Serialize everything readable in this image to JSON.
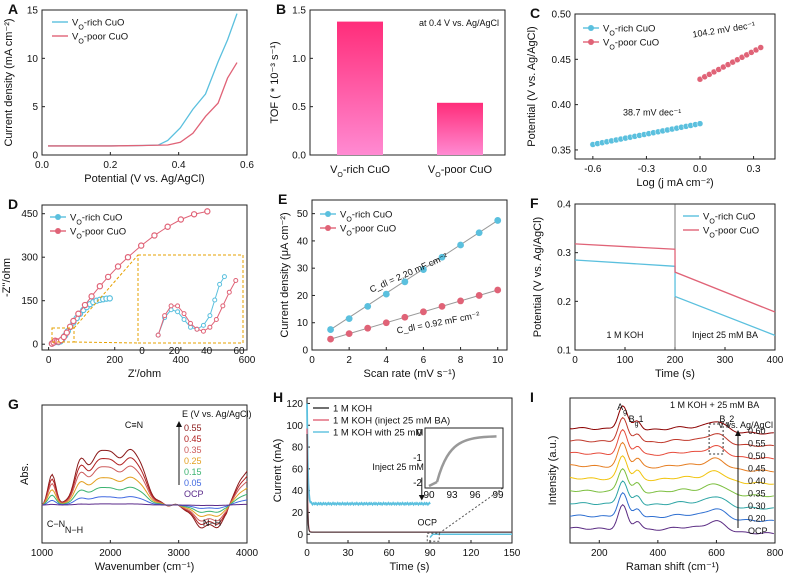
{
  "figure": {
    "panel_letters": [
      "A",
      "B",
      "C",
      "D",
      "E",
      "F",
      "G",
      "H",
      "I"
    ],
    "colors": {
      "rich": "#5bc0de",
      "poor": "#e06377",
      "bar": "#ff3d8e",
      "fit": "#999999"
    }
  },
  "chart_data": [
    {
      "id": "A",
      "type": "line",
      "xlabel": "Potential (V vs. Ag/AgCl)",
      "ylabel": "Current density (mA cm⁻²)",
      "xlim": [
        0.0,
        0.6
      ],
      "ylim": [
        -1,
        15
      ],
      "xticks": [
        "0.0",
        "0.2",
        "0.4",
        "0.6"
      ],
      "yticks": [
        "0",
        "5",
        "10",
        "15"
      ],
      "series": [
        {
          "name": "VO-rich CuO",
          "color": "#5bc0de",
          "x": [
            0.0,
            0.1,
            0.2,
            0.3,
            0.35,
            0.38,
            0.42,
            0.46,
            0.5,
            0.54,
            0.57,
            0.6
          ],
          "y": [
            0.0,
            0.0,
            0.0,
            0.05,
            0.1,
            0.6,
            2.0,
            3.8,
            6.0,
            9.0,
            12.0,
            14.3
          ]
        },
        {
          "name": "VO-poor CuO",
          "color": "#e06377",
          "x": [
            0.0,
            0.1,
            0.2,
            0.3,
            0.38,
            0.42,
            0.46,
            0.5,
            0.54,
            0.57,
            0.6
          ],
          "y": [
            0.0,
            0.0,
            0.0,
            0.05,
            0.1,
            0.4,
            1.4,
            3.0,
            5.0,
            7.2,
            9.5
          ]
        }
      ],
      "legend": [
        "V_O-rich CuO",
        "V_O-poor CuO"
      ]
    },
    {
      "id": "B",
      "type": "bar",
      "ylabel": "TOF ( * 10⁻³ s⁻¹)",
      "annotation": "at 0.4 V vs. Ag/AgCl",
      "categories": [
        "VO-rich CuO",
        "VO-poor CuO"
      ],
      "category_labels": [
        "V_O-rich CuO",
        "V_O-poor CuO"
      ],
      "values": [
        1.38,
        0.54
      ],
      "ylim": [
        0.0,
        1.5
      ],
      "yticks": [
        "0.0",
        "0.5",
        "1.0",
        "1.5"
      ]
    },
    {
      "id": "C",
      "type": "scatter",
      "xlabel": "Log (j mA cm⁻²)",
      "ylabel": "Potential (V vs. Ag/AgCl)",
      "xlim": [
        -0.7,
        0.42
      ],
      "ylim": [
        0.34,
        0.5
      ],
      "xticks": [
        "-0.6",
        "-0.3",
        "0.0",
        "0.3"
      ],
      "yticks": [
        "0.35",
        "0.40",
        "0.45",
        "0.50"
      ],
      "series": [
        {
          "name": "VO-rich CuO",
          "color": "#5bc0de",
          "x0": -0.6,
          "x1": 0.0,
          "y0": 0.356,
          "y1": 0.379,
          "n": 24,
          "slope_label": "38.7 mV dec⁻¹"
        },
        {
          "name": "VO-poor CuO",
          "color": "#e06377",
          "x0": 0.0,
          "x1": 0.34,
          "y0": 0.428,
          "y1": 0.463,
          "n": 14,
          "slope_label": "104.2 mV dec⁻¹"
        }
      ],
      "legend": [
        "V_O-rich CuO",
        "V_O-poor CuO"
      ]
    },
    {
      "id": "D",
      "type": "scatter",
      "xlabel": "Z'/ohm",
      "ylabel": "-Z''/ohm",
      "xlim": [
        -20,
        600
      ],
      "ylim": [
        -20,
        480
      ],
      "xticks": [
        "0",
        "200",
        "400",
        "600"
      ],
      "yticks": [
        "0",
        "150",
        "300",
        "450"
      ],
      "series": [
        {
          "name": "VO-rich CuO",
          "color": "#5bc0de",
          "x": [
            10,
            15,
            20,
            25,
            30,
            36,
            42,
            50,
            58,
            66,
            75,
            85,
            95,
            105,
            115,
            125,
            135,
            145,
            155,
            165,
            175,
            185
          ],
          "y": [
            2,
            5,
            10,
            8,
            7,
            10,
            18,
            30,
            45,
            60,
            75,
            90,
            105,
            118,
            128,
            138,
            145,
            150,
            153,
            155,
            157,
            158
          ]
        },
        {
          "name": "VO-poor CuO",
          "color": "#e06377",
          "x": [
            10,
            15,
            20,
            25,
            30,
            38,
            46,
            55,
            65,
            75,
            90,
            110,
            130,
            155,
            180,
            210,
            240,
            280,
            320,
            360,
            400,
            440,
            480
          ],
          "y": [
            2,
            6,
            12,
            10,
            9,
            14,
            25,
            40,
            60,
            80,
            105,
            135,
            165,
            200,
            232,
            268,
            300,
            340,
            375,
            405,
            430,
            448,
            458
          ]
        }
      ],
      "inset": {
        "xticks": [
          "0",
          "20",
          "40",
          "60"
        ],
        "rich": {
          "x": [
            10,
            14,
            18,
            22,
            26,
            30,
            34,
            38,
            42,
            45,
            48,
            51
          ],
          "y": [
            2,
            11,
            15,
            14,
            10,
            6,
            5,
            7,
            12,
            20,
            28,
            32
          ]
        },
        "poor": {
          "x": [
            10,
            14,
            18,
            22,
            26,
            30,
            34,
            38,
            42,
            46,
            50,
            54,
            58
          ],
          "y": [
            2,
            12,
            17,
            17,
            13,
            8,
            5,
            4,
            6,
            10,
            17,
            24,
            30
          ]
        }
      },
      "legend": [
        "V_O-rich CuO",
        "V_O-poor CuO"
      ]
    },
    {
      "id": "E",
      "type": "scatter",
      "xlabel": "Scan rate (mV s⁻¹)",
      "ylabel": "Current density (μA cm⁻²)",
      "xlim": [
        0,
        10.5
      ],
      "ylim": [
        0,
        55
      ],
      "xticks": [
        "0",
        "2",
        "4",
        "6",
        "8",
        "10"
      ],
      "yticks": [
        "0",
        "10",
        "20",
        "30",
        "40",
        "50"
      ],
      "series": [
        {
          "name": "VO-rich CuO",
          "color": "#5bc0de",
          "x": [
            1,
            2,
            3,
            4,
            5,
            6,
            7,
            8,
            9,
            10
          ],
          "y": [
            7.5,
            11.5,
            16,
            20.5,
            25,
            29.5,
            34,
            38.5,
            43,
            47.5
          ]
        },
        {
          "name": "VO-poor CuO",
          "color": "#e06377",
          "x": [
            1,
            2,
            3,
            4,
            5,
            6,
            7,
            8,
            9,
            10
          ],
          "y": [
            4,
            6,
            8,
            10,
            12,
            14,
            16,
            18,
            20,
            22
          ]
        }
      ],
      "labels": [
        "C_dl = 2.20 mF cm⁻²",
        "C_dl = 0.92 mF cm⁻²"
      ],
      "legend": [
        "V_O-rich CuO",
        "V_O-poor CuO"
      ]
    },
    {
      "id": "F",
      "type": "line",
      "xlabel": "Time (s)",
      "ylabel": "Potential (V vs. Ag/AgCl)",
      "xlim": [
        0,
        400
      ],
      "ylim": [
        0.1,
        0.4
      ],
      "xticks": [
        "0",
        "100",
        "200",
        "300",
        "400"
      ],
      "yticks": [
        "0.1",
        "0.2",
        "0.3",
        "0.4"
      ],
      "series": [
        {
          "name": "VO-rich CuO",
          "color": "#5bc0de",
          "x": [
            0,
            200,
            200.1,
            400
          ],
          "y": [
            0.285,
            0.272,
            0.21,
            0.13
          ]
        },
        {
          "name": "VO-poor CuO",
          "color": "#e06377",
          "x": [
            0,
            200,
            200.1,
            400
          ],
          "y": [
            0.318,
            0.307,
            0.26,
            0.178
          ]
        }
      ],
      "annotations": [
        "1 M KOH",
        "Inject 25 mM BA"
      ],
      "legend": [
        "V_O-rich CuO",
        "V_O-poor CuO"
      ]
    },
    {
      "id": "G",
      "type": "line",
      "xlabel": "Wavenumber (cm⁻¹)",
      "ylabel": "Abs.",
      "xlim": [
        1000,
        4000
      ],
      "xticks": [
        "1000",
        "2000",
        "3000",
        "4000"
      ],
      "legend_title": "E (V vs. Ag/AgCl)",
      "series_names": [
        "0.55",
        "0.45",
        "0.35",
        "0.25",
        "0.15",
        "0.05",
        "OCP"
      ],
      "series_colors": [
        "#8b1a1a",
        "#b22222",
        "#cd5c5c",
        "#e3a020",
        "#3cb371",
        "#4169e1",
        "#5a2a8a"
      ],
      "annotations": [
        "C≡N",
        "C−N",
        "N−H",
        "N−H"
      ]
    },
    {
      "id": "H",
      "type": "line",
      "xlabel": "Time (s)",
      "ylabel": "Current (mA)",
      "xlim": [
        0,
        150
      ],
      "ylim": [
        -8,
        125
      ],
      "xticks": [
        "0",
        "30",
        "60",
        "90",
        "120",
        "150"
      ],
      "yticks": [
        "0",
        "20",
        "40",
        "60",
        "80",
        "100",
        "120"
      ],
      "series": [
        {
          "name": "1 M KOH",
          "color": "#333333"
        },
        {
          "name": "1 M KOH (inject 25 mM BA)",
          "color": "#e06377"
        },
        {
          "name": "1 M KOH with 25 mM BA",
          "color": "#5bc0de"
        }
      ],
      "annotations": [
        "Inject 25 mM BA",
        "OCP"
      ],
      "inset": {
        "xticks": [
          "90",
          "93",
          "96",
          "99"
        ],
        "yticks": [
          "0",
          "-1",
          "-2"
        ]
      }
    },
    {
      "id": "I",
      "type": "line",
      "xlabel": "Raman shift (cm⁻¹)",
      "ylabel": "Intensity (a.u.)",
      "xlim": [
        100,
        800
      ],
      "xticks": [
        "200",
        "400",
        "600",
        "800"
      ],
      "title": "1 M KOH + 25 mM BA",
      "legend_title": "V vs. Ag/AgCl",
      "series_names": [
        "0.60",
        "0.55",
        "0.50",
        "0.45",
        "0.40",
        "0.35",
        "0.30",
        "0.20",
        "OCP"
      ],
      "series_colors": [
        "#8b0000",
        "#c0392b",
        "#e74c3c",
        "#e67e22",
        "#f1c40f",
        "#7cbf3f",
        "#2ea5a5",
        "#2e6fd1",
        "#5b2c83"
      ],
      "annotations": [
        "A_g",
        "B_g1",
        "B_g2"
      ]
    }
  ]
}
